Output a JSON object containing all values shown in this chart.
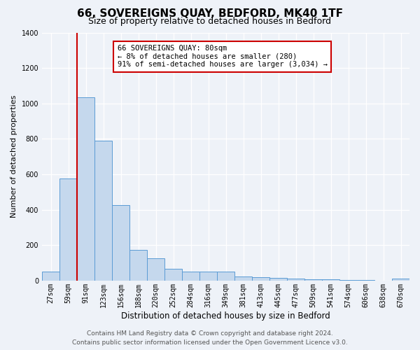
{
  "title": "66, SOVEREIGNS QUAY, BEDFORD, MK40 1TF",
  "subtitle": "Size of property relative to detached houses in Bedford",
  "xlabel": "Distribution of detached houses by size in Bedford",
  "ylabel": "Number of detached properties",
  "bar_labels": [
    "27sqm",
    "59sqm",
    "91sqm",
    "123sqm",
    "156sqm",
    "188sqm",
    "220sqm",
    "252sqm",
    "284sqm",
    "316sqm",
    "349sqm",
    "381sqm",
    "413sqm",
    "445sqm",
    "477sqm",
    "509sqm",
    "541sqm",
    "574sqm",
    "606sqm",
    "638sqm",
    "670sqm"
  ],
  "bar_values": [
    50,
    575,
    1035,
    790,
    425,
    175,
    125,
    65,
    50,
    50,
    50,
    25,
    20,
    15,
    10,
    8,
    8,
    5,
    5,
    0,
    10
  ],
  "bar_color": "#c5d8ed",
  "bar_edge_color": "#5b9bd5",
  "ylim": [
    0,
    1400
  ],
  "yticks": [
    0,
    200,
    400,
    600,
    800,
    1000,
    1200,
    1400
  ],
  "vline_color": "#cc0000",
  "annotation_title": "66 SOVEREIGNS QUAY: 80sqm",
  "annotation_line1": "← 8% of detached houses are smaller (280)",
  "annotation_line2": "91% of semi-detached houses are larger (3,034) →",
  "footer_line1": "Contains HM Land Registry data © Crown copyright and database right 2024.",
  "footer_line2": "Contains public sector information licensed under the Open Government Licence v3.0.",
  "background_color": "#eef2f8",
  "grid_color": "#ffffff",
  "title_fontsize": 11,
  "subtitle_fontsize": 9,
  "tick_fontsize": 7,
  "ylabel_fontsize": 8,
  "xlabel_fontsize": 8.5,
  "footer_fontsize": 6.5
}
